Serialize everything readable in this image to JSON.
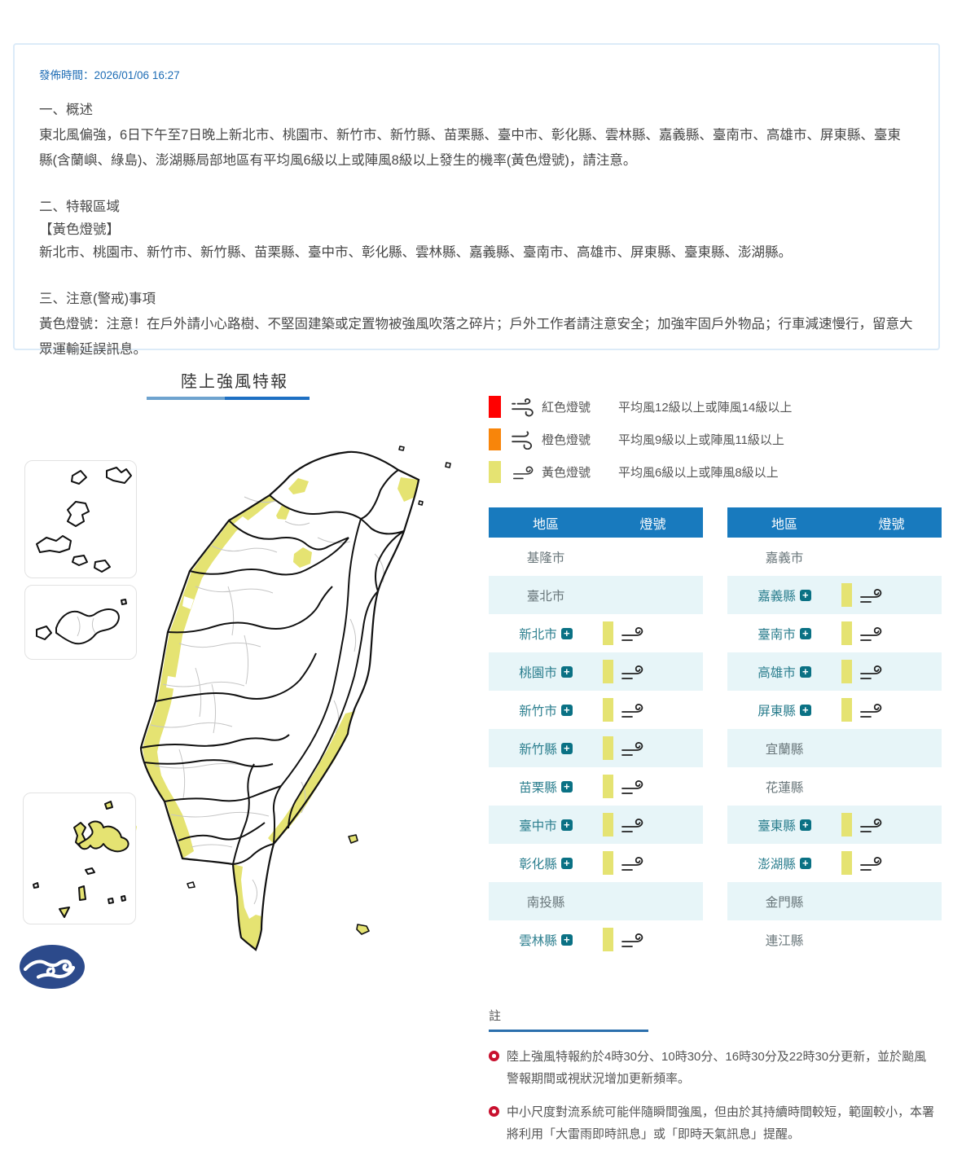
{
  "info_box": {
    "publish_time": "發佈時間：2026/01/06 16:27",
    "section1_title": "一、概述",
    "section1_body": "東北風偏強，6日下午至7日晚上新北市、桃園市、新竹市、新竹縣、苗栗縣、臺中市、彰化縣、雲林縣、嘉義縣、臺南市、高雄市、屏東縣、臺東縣(含蘭嶼、綠島)、澎湖縣局部地區有平均風6級以上或陣風8級以上發生的機率(黃色燈號)，請注意。",
    "section2_title": "二、特報區域",
    "section2_subtitle": "【黃色燈號】",
    "section2_body": "新北市、桃園市、新竹市、新竹縣、苗栗縣、臺中市、彰化縣、雲林縣、嘉義縣、臺南市、高雄市、屏東縣、臺東縣、澎湖縣。",
    "section3_title": "三、注意(警戒)事項",
    "section3_body": "黃色燈號：注意！在戶外請小心路樹、不堅固建築或定置物被強風吹落之碎片；戶外工作者請注意安全；加強牢固戶外物品；行車減速慢行，留意大眾運輸延誤訊息。"
  },
  "map": {
    "title": "陸上強風特報"
  },
  "legend": {
    "rows": [
      {
        "label": "紅色燈號",
        "desc": "平均風12級以上或陣風14級以上",
        "color": "#ff0000"
      },
      {
        "label": "橙色燈號",
        "desc": "平均風9級以上或陣風11級以上",
        "color": "#f8850a"
      },
      {
        "label": "黃色燈號",
        "desc": "平均風6級以上或陣風8級以上",
        "color": "#e5e372"
      }
    ]
  },
  "tables": {
    "header": {
      "region": "地區",
      "signal": "燈號"
    },
    "left": {
      "rows": [
        {
          "name": "基隆市",
          "signal": false
        },
        {
          "name": "臺北市",
          "signal": false
        },
        {
          "name": "新北市",
          "signal": true
        },
        {
          "name": "桃園市",
          "signal": true
        },
        {
          "name": "新竹市",
          "signal": true
        },
        {
          "name": "新竹縣",
          "signal": true
        },
        {
          "name": "苗栗縣",
          "signal": true
        },
        {
          "name": "臺中市",
          "signal": true
        },
        {
          "name": "彰化縣",
          "signal": true
        },
        {
          "name": "南投縣",
          "signal": false
        },
        {
          "name": "雲林縣",
          "signal": true
        }
      ]
    },
    "right": {
      "rows": [
        {
          "name": "嘉義市",
          "signal": false
        },
        {
          "name": "嘉義縣",
          "signal": true
        },
        {
          "name": "臺南市",
          "signal": true
        },
        {
          "name": "高雄市",
          "signal": true
        },
        {
          "name": "屏東縣",
          "signal": true
        },
        {
          "name": "宜蘭縣",
          "signal": false
        },
        {
          "name": "花蓮縣",
          "signal": false
        },
        {
          "name": "臺東縣",
          "signal": true
        },
        {
          "name": "澎湖縣",
          "signal": true
        },
        {
          "name": "金門縣",
          "signal": false
        },
        {
          "name": "連江縣",
          "signal": false
        }
      ]
    }
  },
  "notes": {
    "title": "註",
    "items": [
      "陸上強風特報約於4時30分、10時30分、16時30分及22時30分更新，並於颱風警報期間或視狀況增加更新頻率。",
      "中小尺度對流系統可能伴隨瞬間強風，但由於其持續時間較短，範圍較小，本署將利用「大雷雨即時訊息」或「即時天氣訊息」提醒。"
    ]
  },
  "colors": {
    "header_blue": "#187abe",
    "row_alt_cyan": "#e7f5f8",
    "signal_yellow": "#e5e372",
    "region_teal": "#2b7e8e",
    "plus_badge_teal": "#0a7184",
    "legend_red": "#ff0000",
    "legend_orange": "#f8850a",
    "note_bullet_red": "#c8102e",
    "publish_time_blue": "#1d6cb5",
    "logo_navy": "#2c4a8b"
  }
}
